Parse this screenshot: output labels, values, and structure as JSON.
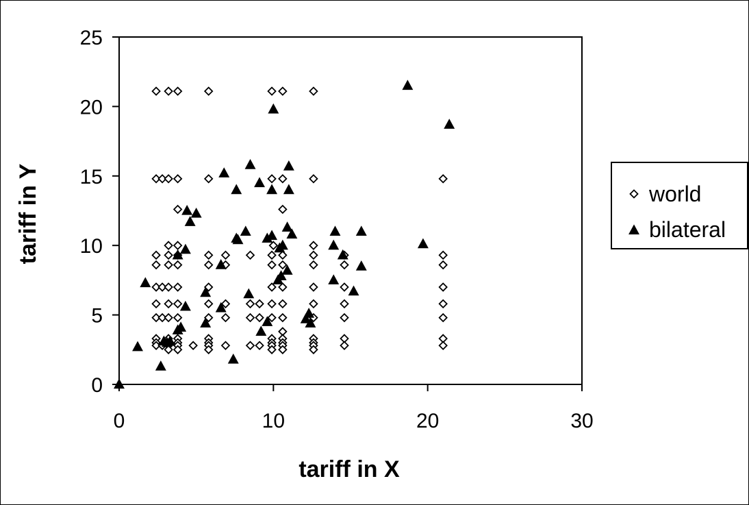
{
  "chart_data": {
    "type": "scatter",
    "xlabel": "tariff in X",
    "ylabel": "tariff in Y",
    "xlim": [
      0,
      30
    ],
    "ylim": [
      0,
      25
    ],
    "xticks": [
      "0",
      "10",
      "20",
      "30"
    ],
    "yticks": [
      "0",
      "5",
      "10",
      "15",
      "20",
      "25"
    ],
    "grid": false,
    "legend": "right",
    "series": [
      {
        "name": "world",
        "marker": "open-diamond",
        "color": "#000000",
        "points": [
          [
            2.4,
            21.1
          ],
          [
            3.2,
            21.1
          ],
          [
            3.8,
            21.1
          ],
          [
            5.8,
            21.1
          ],
          [
            9.9,
            21.1
          ],
          [
            10.6,
            21.1
          ],
          [
            12.6,
            21.1
          ],
          [
            2.4,
            14.8
          ],
          [
            2.8,
            14.8
          ],
          [
            3.2,
            14.8
          ],
          [
            3.8,
            14.8
          ],
          [
            5.8,
            14.8
          ],
          [
            9.9,
            14.8
          ],
          [
            10.6,
            14.8
          ],
          [
            12.6,
            14.8
          ],
          [
            21.0,
            14.8
          ],
          [
            3.8,
            12.6
          ],
          [
            10.6,
            12.6
          ],
          [
            3.2,
            10.0
          ],
          [
            3.8,
            10.0
          ],
          [
            10.0,
            10.0
          ],
          [
            12.6,
            10.0
          ],
          [
            2.4,
            9.3
          ],
          [
            3.2,
            9.3
          ],
          [
            3.8,
            9.3
          ],
          [
            5.8,
            9.3
          ],
          [
            6.9,
            9.3
          ],
          [
            8.5,
            9.3
          ],
          [
            9.9,
            9.3
          ],
          [
            10.6,
            9.3
          ],
          [
            12.6,
            9.3
          ],
          [
            14.6,
            9.3
          ],
          [
            21.0,
            9.3
          ],
          [
            2.4,
            8.6
          ],
          [
            3.2,
            8.6
          ],
          [
            3.8,
            8.6
          ],
          [
            5.8,
            8.6
          ],
          [
            6.9,
            8.6
          ],
          [
            9.9,
            8.6
          ],
          [
            10.6,
            8.6
          ],
          [
            12.6,
            8.6
          ],
          [
            14.6,
            8.6
          ],
          [
            21.0,
            8.6
          ],
          [
            2.4,
            7.0
          ],
          [
            2.8,
            7.0
          ],
          [
            3.2,
            7.0
          ],
          [
            3.8,
            7.0
          ],
          [
            5.8,
            7.0
          ],
          [
            9.9,
            7.0
          ],
          [
            10.6,
            7.0
          ],
          [
            12.6,
            7.0
          ],
          [
            14.6,
            7.0
          ],
          [
            21.0,
            7.0
          ],
          [
            2.4,
            5.8
          ],
          [
            3.2,
            5.8
          ],
          [
            3.8,
            5.8
          ],
          [
            5.8,
            5.8
          ],
          [
            6.9,
            5.8
          ],
          [
            8.5,
            5.8
          ],
          [
            9.1,
            5.8
          ],
          [
            9.9,
            5.8
          ],
          [
            10.6,
            5.8
          ],
          [
            12.6,
            5.8
          ],
          [
            14.6,
            5.8
          ],
          [
            21.0,
            5.8
          ],
          [
            2.4,
            4.8
          ],
          [
            2.8,
            4.8
          ],
          [
            3.2,
            4.8
          ],
          [
            3.8,
            4.8
          ],
          [
            5.8,
            4.8
          ],
          [
            6.9,
            4.8
          ],
          [
            8.5,
            4.8
          ],
          [
            9.1,
            4.8
          ],
          [
            9.9,
            4.8
          ],
          [
            10.6,
            4.8
          ],
          [
            12.6,
            4.8
          ],
          [
            14.6,
            4.8
          ],
          [
            21.0,
            4.8
          ],
          [
            10.6,
            3.8
          ],
          [
            2.4,
            3.3
          ],
          [
            3.2,
            3.3
          ],
          [
            3.8,
            3.3
          ],
          [
            5.8,
            3.3
          ],
          [
            9.9,
            3.3
          ],
          [
            10.6,
            3.3
          ],
          [
            12.6,
            3.3
          ],
          [
            14.6,
            3.3
          ],
          [
            21.0,
            3.3
          ],
          [
            2.4,
            3.0
          ],
          [
            3.2,
            3.0
          ],
          [
            3.8,
            3.0
          ],
          [
            5.8,
            3.0
          ],
          [
            9.9,
            3.0
          ],
          [
            10.6,
            3.0
          ],
          [
            12.6,
            3.0
          ],
          [
            2.4,
            2.8
          ],
          [
            2.8,
            2.8
          ],
          [
            3.2,
            2.8
          ],
          [
            3.8,
            2.8
          ],
          [
            4.8,
            2.8
          ],
          [
            5.8,
            2.8
          ],
          [
            6.9,
            2.8
          ],
          [
            8.5,
            2.8
          ],
          [
            9.1,
            2.8
          ],
          [
            9.9,
            2.8
          ],
          [
            10.6,
            2.8
          ],
          [
            12.6,
            2.8
          ],
          [
            14.6,
            2.8
          ],
          [
            21.0,
            2.8
          ],
          [
            3.2,
            2.5
          ],
          [
            3.8,
            2.5
          ],
          [
            5.8,
            2.5
          ],
          [
            9.9,
            2.5
          ],
          [
            10.6,
            2.5
          ],
          [
            12.6,
            2.5
          ]
        ]
      },
      {
        "name": "bilateral",
        "marker": "filled-triangle",
        "color": "#000000",
        "points": [
          [
            0.0,
            0.0
          ],
          [
            1.2,
            2.7
          ],
          [
            2.7,
            1.3
          ],
          [
            1.7,
            7.3
          ],
          [
            2.9,
            3.1
          ],
          [
            3.1,
            3.0
          ],
          [
            3.3,
            3.1
          ],
          [
            3.8,
            3.9
          ],
          [
            4.0,
            4.1
          ],
          [
            3.8,
            9.3
          ],
          [
            4.3,
            9.7
          ],
          [
            4.3,
            5.6
          ],
          [
            4.4,
            12.5
          ],
          [
            4.6,
            11.7
          ],
          [
            5.0,
            12.3
          ],
          [
            5.6,
            6.6
          ],
          [
            5.6,
            4.4
          ],
          [
            6.6,
            5.5
          ],
          [
            6.6,
            8.6
          ],
          [
            6.8,
            15.2
          ],
          [
            7.4,
            1.8
          ],
          [
            7.6,
            14.0
          ],
          [
            7.6,
            10.5
          ],
          [
            7.7,
            10.4
          ],
          [
            8.2,
            11.0
          ],
          [
            8.5,
            15.8
          ],
          [
            8.4,
            6.5
          ],
          [
            9.1,
            14.5
          ],
          [
            9.2,
            3.8
          ],
          [
            9.6,
            4.5
          ],
          [
            9.6,
            10.5
          ],
          [
            9.9,
            14.0
          ],
          [
            9.9,
            10.7
          ],
          [
            10.0,
            19.8
          ],
          [
            10.3,
            7.5
          ],
          [
            10.4,
            9.8
          ],
          [
            10.5,
            7.8
          ],
          [
            10.6,
            10.0
          ],
          [
            10.9,
            11.3
          ],
          [
            10.9,
            8.2
          ],
          [
            11.0,
            14.0
          ],
          [
            11.0,
            15.7
          ],
          [
            11.2,
            10.8
          ],
          [
            12.1,
            4.7
          ],
          [
            12.3,
            5.1
          ],
          [
            12.4,
            4.4
          ],
          [
            13.9,
            7.5
          ],
          [
            13.9,
            10.0
          ],
          [
            14.0,
            11.0
          ],
          [
            14.5,
            9.3
          ],
          [
            15.2,
            6.7
          ],
          [
            15.7,
            11.0
          ],
          [
            15.7,
            8.5
          ],
          [
            18.7,
            21.5
          ],
          [
            19.7,
            10.1
          ],
          [
            21.4,
            18.7
          ]
        ]
      }
    ]
  }
}
